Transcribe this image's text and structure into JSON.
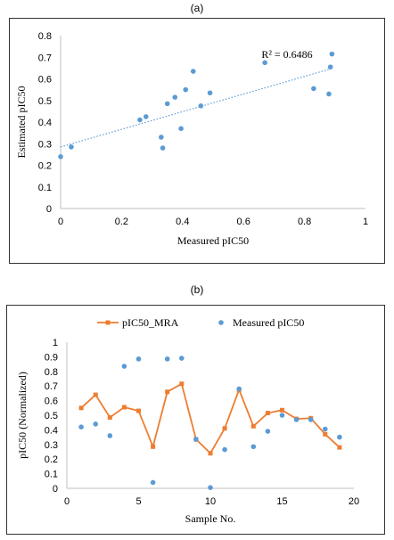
{
  "panels": {
    "a_label": "(a)",
    "b_label": "(b)"
  },
  "colors": {
    "blue": "#5B9BD5",
    "orange": "#ED7D31",
    "frame": "#333333",
    "axis": "#bfbfbf"
  },
  "chart_data": [
    {
      "type": "scatter",
      "title": "",
      "xlabel": "Measured pIC50",
      "ylabel": "Estimated pIC50",
      "xlim": [
        0,
        1
      ],
      "ylim": [
        0,
        0.8
      ],
      "xticks": [
        "0",
        "0.2",
        "0.4",
        "0.6",
        "0.8",
        "1"
      ],
      "yticks": [
        "0",
        "0.1",
        "0.2",
        "0.3",
        "0.4",
        "0.5",
        "0.6",
        "0.7",
        "0.8"
      ],
      "grid": false,
      "annotation": "R² = 0.6486",
      "trendline": {
        "style": "dotted linear",
        "x": [
          0,
          0.89
        ],
        "y": [
          0.285,
          0.648
        ]
      },
      "points": [
        {
          "x": 0.0,
          "y": 0.24
        },
        {
          "x": 0.035,
          "y": 0.285
        },
        {
          "x": 0.26,
          "y": 0.41
        },
        {
          "x": 0.28,
          "y": 0.425
        },
        {
          "x": 0.33,
          "y": 0.33
        },
        {
          "x": 0.335,
          "y": 0.28
        },
        {
          "x": 0.35,
          "y": 0.485
        },
        {
          "x": 0.375,
          "y": 0.515
        },
        {
          "x": 0.395,
          "y": 0.37
        },
        {
          "x": 0.41,
          "y": 0.55
        },
        {
          "x": 0.435,
          "y": 0.635
        },
        {
          "x": 0.46,
          "y": 0.475
        },
        {
          "x": 0.49,
          "y": 0.535
        },
        {
          "x": 0.67,
          "y": 0.675
        },
        {
          "x": 0.83,
          "y": 0.555
        },
        {
          "x": 0.88,
          "y": 0.53
        },
        {
          "x": 0.885,
          "y": 0.655
        },
        {
          "x": 0.89,
          "y": 0.715
        }
      ]
    },
    {
      "type": "line",
      "title": "",
      "xlabel": "Sample No.",
      "ylabel": "pIC50 (Normalized)",
      "xlim": [
        0,
        20
      ],
      "ylim": [
        0,
        1
      ],
      "xticks": [
        "0",
        "5",
        "10",
        "15",
        "20"
      ],
      "yticks": [
        "0",
        "0.1",
        "0.2",
        "0.3",
        "0.4",
        "0.5",
        "0.6",
        "0.7",
        "0.8",
        "0.9",
        "1"
      ],
      "grid": false,
      "legend_position": "top",
      "x": [
        1,
        2,
        3,
        4,
        5,
        6,
        7,
        8,
        9,
        10,
        11,
        12,
        13,
        14,
        15,
        16,
        17,
        18,
        19
      ],
      "series": [
        {
          "name": "pIC50_MRA",
          "style": "line-square",
          "values": [
            0.55,
            0.64,
            0.485,
            0.555,
            0.53,
            0.285,
            0.66,
            0.715,
            0.335,
            0.24,
            0.41,
            0.675,
            0.425,
            0.515,
            0.535,
            0.475,
            0.48,
            0.37,
            0.28
          ]
        },
        {
          "name": "Measured pIC50",
          "style": "marker",
          "values": [
            0.42,
            0.44,
            0.36,
            0.835,
            0.885,
            0.04,
            0.885,
            0.89,
            0.335,
            0.005,
            0.265,
            0.68,
            0.285,
            0.39,
            0.5,
            0.47,
            0.47,
            0.405,
            0.35
          ]
        }
      ]
    }
  ]
}
